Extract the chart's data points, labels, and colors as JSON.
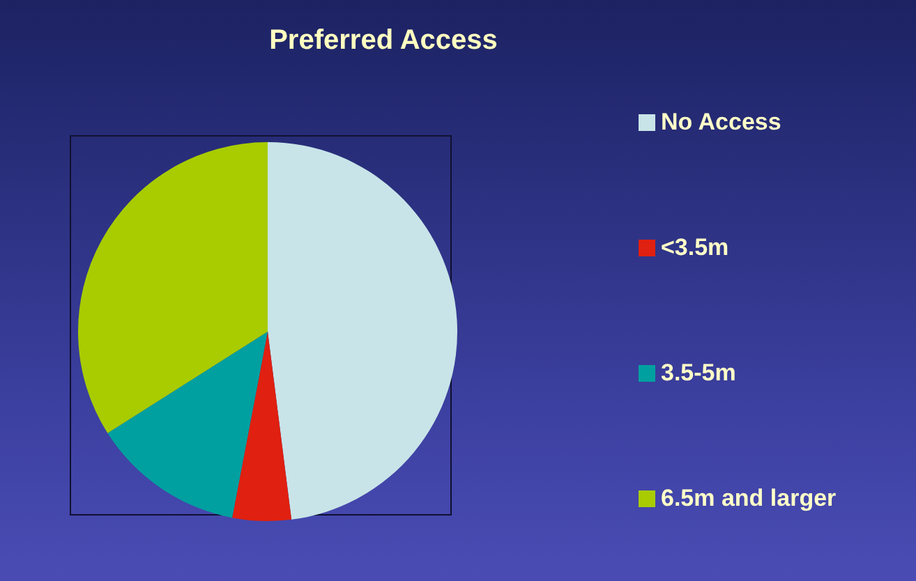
{
  "chart_data": {
    "type": "pie",
    "title": "Preferred Access",
    "categories": [
      "No Access",
      "<3.5m",
      "3.5-5m",
      "6.5m and larger"
    ],
    "values": [
      48,
      5,
      13,
      34
    ],
    "colors": [
      "#c8e4e8",
      "#e02010",
      "#00a0a0",
      "#a8cc00"
    ],
    "legend": "right"
  }
}
